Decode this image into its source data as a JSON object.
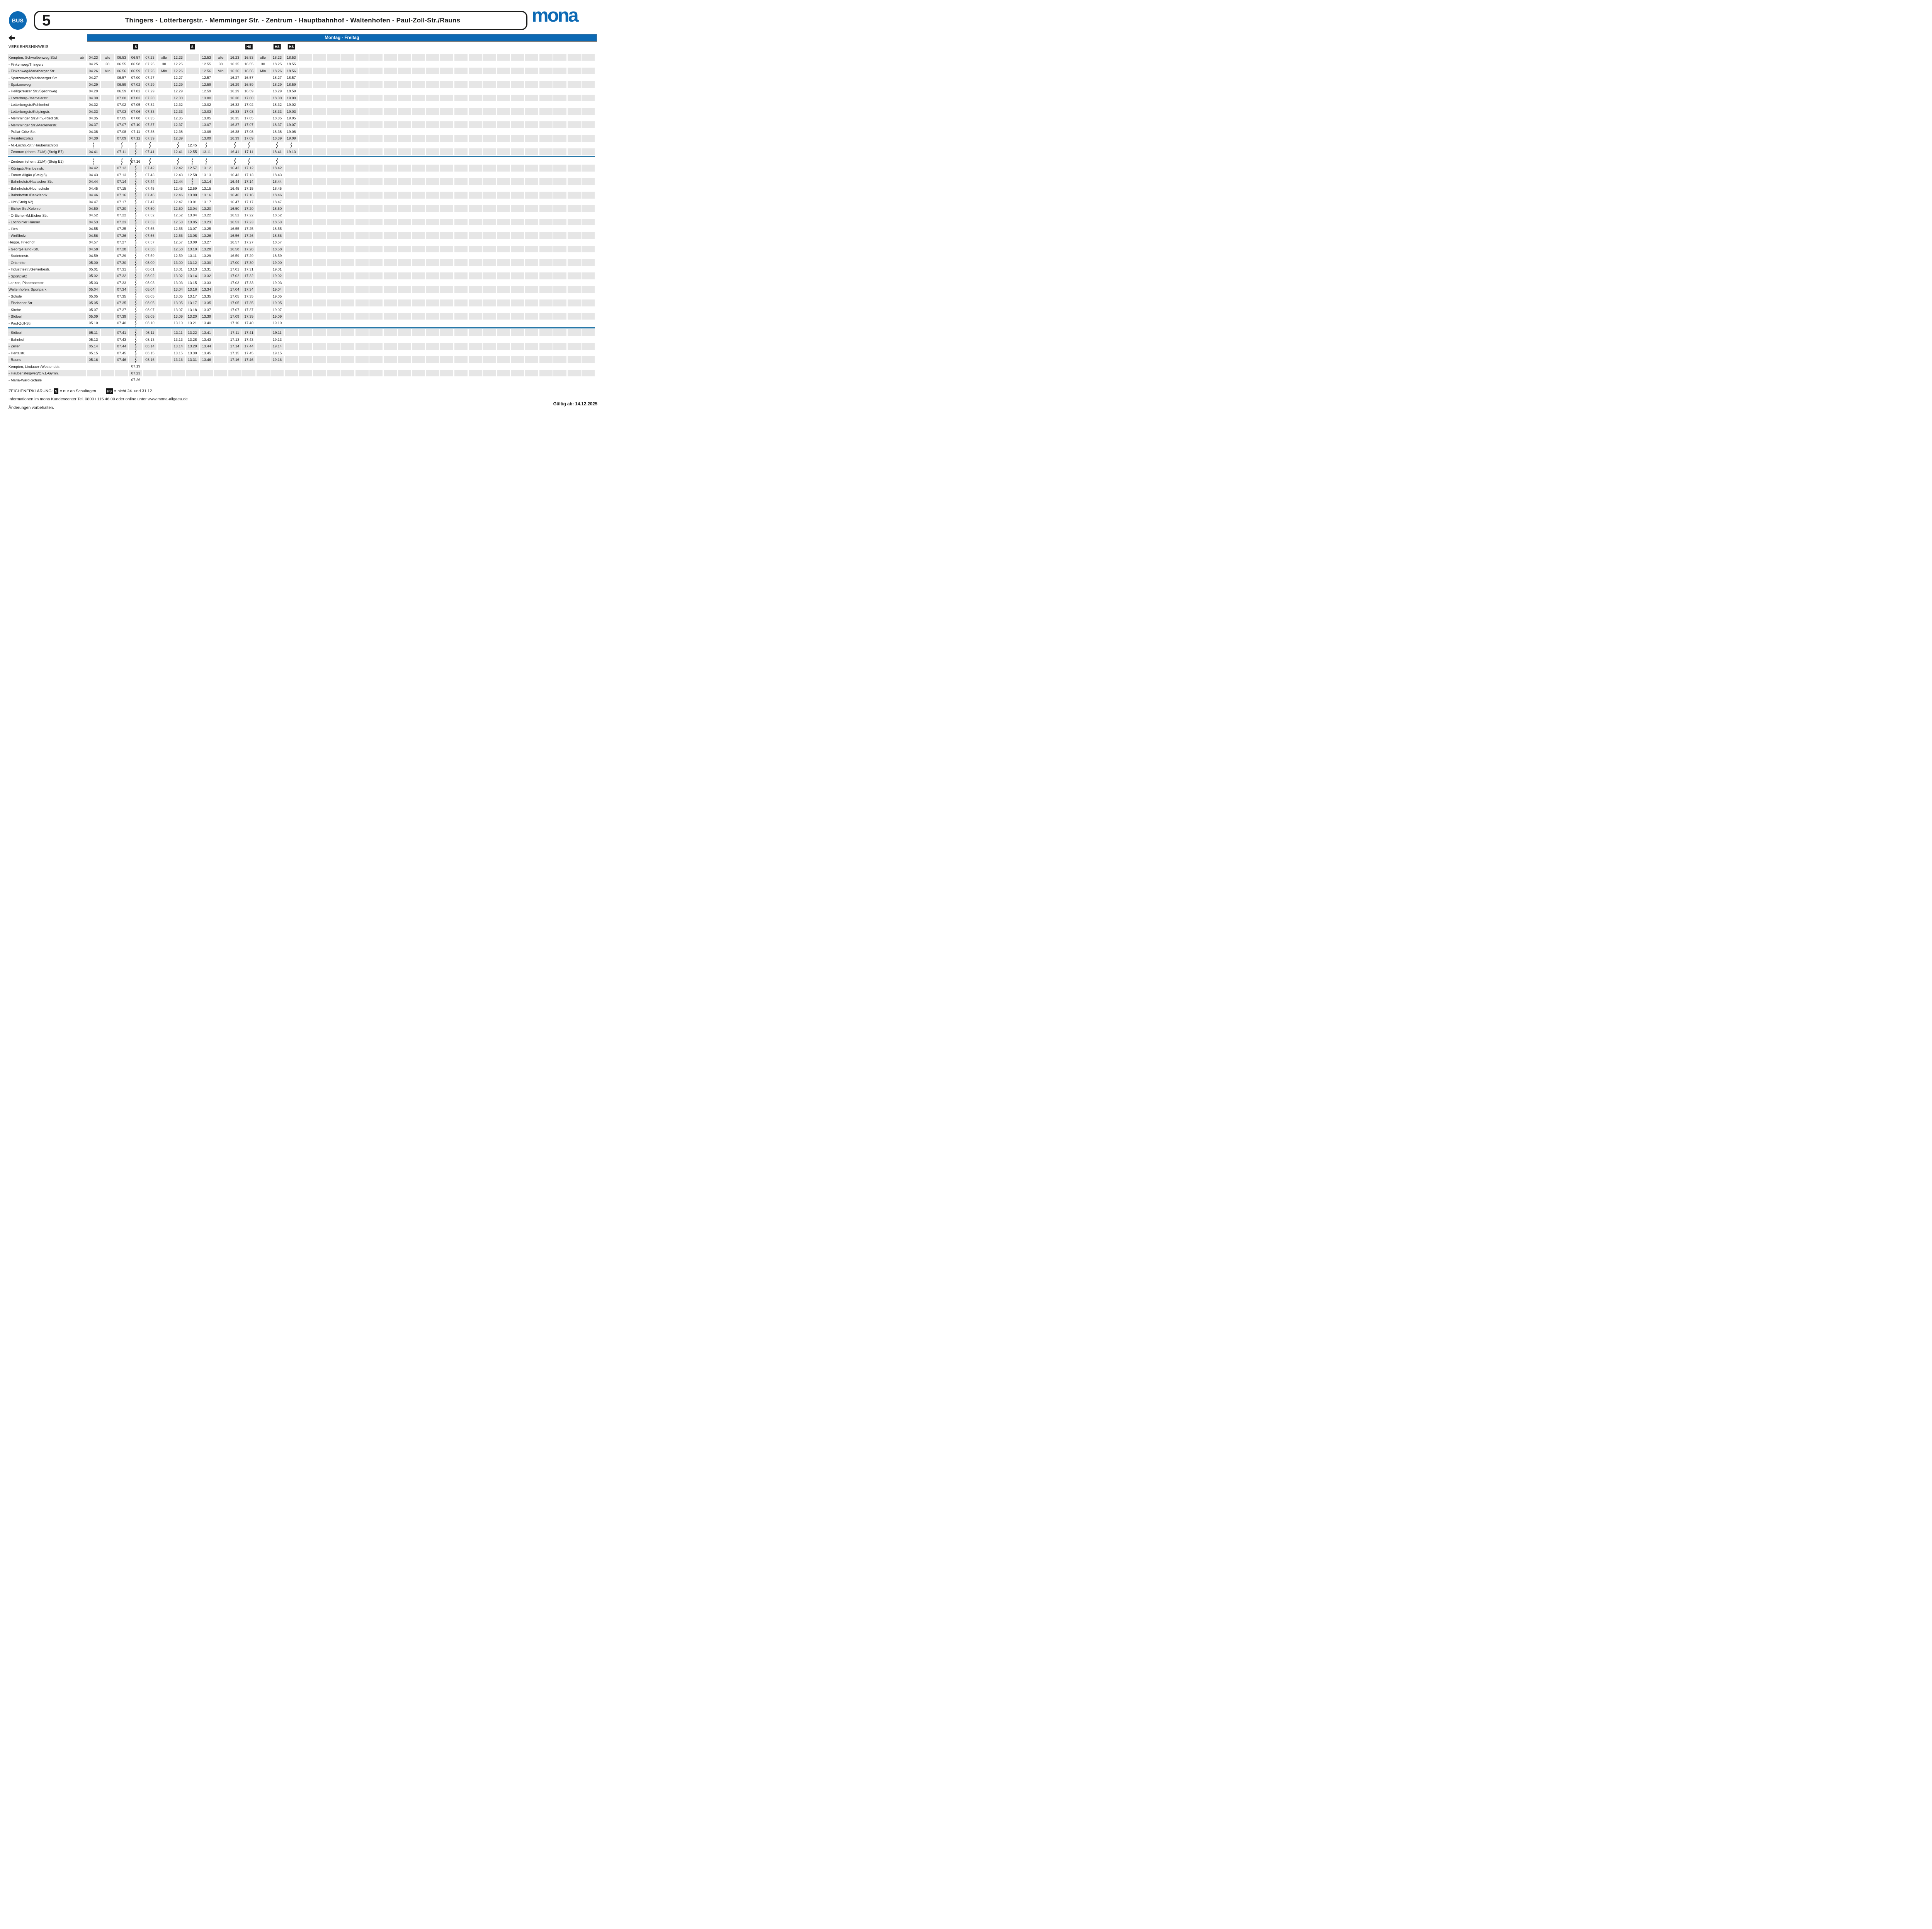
{
  "header": {
    "bus_badge": "BUS",
    "line_number": "5",
    "route_title": "Thingers - Lotterbergstr. - Memminger Str. - Zentrum - Hauptbahnhof - Waltenhofen - Paul-Zoll-Str./Rauns",
    "logo_text": "mona"
  },
  "colors": {
    "brand_blue": "#0c69b4",
    "separator_blue": "#2878a8",
    "row_shade": "#e6e6e6",
    "badge_black": "#141414"
  },
  "day_band": "Montag - Freitag",
  "traffic_hint_label": "VERKEHRSHINWEIS",
  "departure_label": "ab",
  "total_columns": 36,
  "column_markers": [
    {
      "col": 4,
      "label": "S"
    },
    {
      "col": 8,
      "label": "S"
    },
    {
      "col": 12,
      "label": "HS"
    },
    {
      "col": 14,
      "label": "HS"
    },
    {
      "col": 15,
      "label": "HS"
    }
  ],
  "separators_after": [
    14,
    39
  ],
  "rows": [
    {
      "name": "Kempten, Schwalbenweg Süd",
      "dash": false,
      "ab": true,
      "shaded": true,
      "cells": {
        "1": "04.23",
        "2": "alle",
        "3": "06.53",
        "4": "06.57",
        "5": "07.23",
        "6": "alle",
        "7": "12.23",
        "9": "12.53",
        "10": "alle",
        "11": "16.23",
        "12": "16.53",
        "13": "alle",
        "14": "18.23",
        "15": "18.53"
      }
    },
    {
      "name": "Finkenweg/Thingers",
      "dash": true,
      "shaded": false,
      "cells": {
        "1": "04.25",
        "2": "30",
        "3": "06.55",
        "4": "06.58",
        "5": "07.25",
        "6": "30",
        "7": "12.25",
        "9": "12.55",
        "10": "30",
        "11": "16.25",
        "12": "16.55",
        "13": "30",
        "14": "18.25",
        "15": "18.55"
      }
    },
    {
      "name": "Finkenweg/Mariaberger Str.",
      "dash": true,
      "shaded": true,
      "cells": {
        "1": "04.26",
        "2": "Min",
        "3": "06.56",
        "4": "06.59",
        "5": "07.26",
        "6": "Min",
        "7": "12.26",
        "9": "12.56",
        "10": "Min",
        "11": "16.26",
        "12": "16.56",
        "13": "Min",
        "14": "18.26",
        "15": "18.56"
      }
    },
    {
      "name": "Spatzenweg/Mariaberger Str.",
      "dash": true,
      "shaded": false,
      "cells": {
        "1": "04.27",
        "3": "06.57",
        "4": "07.00",
        "5": "07.27",
        "7": "12.27",
        "9": "12.57",
        "11": "16.27",
        "12": "16.57",
        "14": "18.27",
        "15": "18.57"
      }
    },
    {
      "name": "Spatzenweg",
      "dash": true,
      "shaded": true,
      "cells": {
        "1": "04.29",
        "3": "06.59",
        "4": "07.02",
        "5": "07.29",
        "7": "12.29",
        "9": "12.59",
        "11": "16.29",
        "12": "16.59",
        "14": "18.29",
        "15": "18.59"
      }
    },
    {
      "name": "Heiligkreuzer Str./Spechtweg",
      "dash": true,
      "shaded": false,
      "cells": {
        "1": "04.29",
        "3": "06.59",
        "4": "07.02",
        "5": "07.29",
        "7": "12.29",
        "9": "12.59",
        "11": "16.29",
        "12": "16.59",
        "14": "18.29",
        "15": "18.59"
      }
    },
    {
      "name": "Lotterberg-/Memelerstr.",
      "dash": true,
      "shaded": true,
      "cells": {
        "1": "04.30",
        "3": "07.00",
        "4": "07.03",
        "5": "07.30",
        "7": "12.30",
        "9": "13.00",
        "11": "16.30",
        "12": "17.00",
        "14": "18.30",
        "15": "19.00"
      }
    },
    {
      "name": "Lotterbergstr./Fohlenhof",
      "dash": true,
      "shaded": false,
      "cells": {
        "1": "04.32",
        "3": "07.02",
        "4": "07.05",
        "5": "07.32",
        "7": "12.32",
        "9": "13.02",
        "11": "16.32",
        "12": "17.02",
        "14": "18.32",
        "15": "19.02"
      }
    },
    {
      "name": "Lotterbergstr./Kolpingstr.",
      "dash": true,
      "shaded": true,
      "cells": {
        "1": "04.33",
        "3": "07.03",
        "4": "07.06",
        "5": "07.33",
        "7": "12.33",
        "9": "13.03",
        "11": "16.33",
        "12": "17.03",
        "14": "18.33",
        "15": "19.03"
      }
    },
    {
      "name": "Memminger Str./Fr.v.-Ried Str.",
      "dash": true,
      "shaded": false,
      "cells": {
        "1": "04.35",
        "3": "07.05",
        "4": "07.08",
        "5": "07.35",
        "7": "12.35",
        "9": "13.05",
        "11": "16.35",
        "12": "17.05",
        "14": "18.35",
        "15": "19.05"
      }
    },
    {
      "name": "Memminger Str./Madlenerstr.",
      "dash": true,
      "shaded": true,
      "cells": {
        "1": "04.37",
        "3": "07.07",
        "4": "07.10",
        "5": "07.37",
        "7": "12.37",
        "9": "13.07",
        "11": "16.37",
        "12": "17.07",
        "14": "18.37",
        "15": "19.07"
      }
    },
    {
      "name": "Prälat-Götz-Str.",
      "dash": true,
      "shaded": false,
      "cells": {
        "1": "04.38",
        "3": "07.08",
        "4": "07.11",
        "5": "07.38",
        "7": "12.38",
        "9": "13.08",
        "11": "16.38",
        "12": "17.08",
        "14": "18.38",
        "15": "19.08"
      }
    },
    {
      "name": "Residenzplatz",
      "dash": true,
      "shaded": true,
      "cells": {
        "1": "04.39",
        "3": "07.09",
        "4": "07.12",
        "5": "07.39",
        "7": "12.39",
        "9": "13.09",
        "11": "16.39",
        "12": "17.09",
        "14": "18.39",
        "15": "19.09"
      }
    },
    {
      "name": "M.-Lochb.-Str./Haubenschloß",
      "dash": true,
      "shaded": false,
      "cells": {
        "8": "12.45"
      },
      "wavy": [
        1,
        3,
        4,
        5,
        7,
        9,
        11,
        12,
        14,
        15
      ]
    },
    {
      "name": "Zentrum (ehem. ZUM) (Steig B7)",
      "dash": true,
      "shaded": true,
      "cells": {
        "1": "04.41",
        "3": "07.11",
        "5": "07.41",
        "7": "12.41",
        "8": "12.55",
        "9": "13.11",
        "11": "16.41",
        "12": "17.11",
        "14": "18.41",
        "15": "19.13"
      },
      "wavy": [
        4
      ]
    },
    {
      "name": "Zentrum (ehem. ZUM) (Steig E2)",
      "dash": true,
      "shaded": false,
      "cells": {
        "4": "07.16"
      },
      "wavy": [
        1,
        3,
        5,
        7,
        8,
        9,
        11,
        12,
        14
      ],
      "wavy_left": [
        4
      ]
    },
    {
      "name": "Königstr./Hirnbeinstr.",
      "dash": true,
      "shaded": true,
      "cells": {
        "1": "04.42",
        "3": "07.12",
        "5": "07.42",
        "7": "12.42",
        "8": "12.57",
        "9": "13.12",
        "11": "16.42",
        "12": "17.12",
        "14": "18.42"
      },
      "wavy": [
        4
      ]
    },
    {
      "name": "Forum Allgäu (Steig 8)",
      "dash": true,
      "shaded": false,
      "cells": {
        "1": "04.43",
        "3": "07.13",
        "5": "07.43",
        "7": "12.43",
        "8": "12.58",
        "9": "13.13",
        "11": "16.43",
        "12": "17.13",
        "14": "18.43"
      },
      "wavy": [
        4
      ]
    },
    {
      "name": "Bahnhofstr./Haslacher Str.",
      "dash": true,
      "shaded": true,
      "cells": {
        "1": "04.44",
        "3": "07.14",
        "5": "07.44",
        "7": "12.44",
        "9": "13.14",
        "11": "16.44",
        "12": "17.14",
        "14": "18.44"
      },
      "wavy": [
        4,
        8
      ]
    },
    {
      "name": "Bahnhofstr./Hochschule",
      "dash": true,
      "shaded": false,
      "cells": {
        "1": "04.45",
        "3": "07.15",
        "5": "07.45",
        "7": "12.45",
        "8": "12.59",
        "9": "13.15",
        "11": "16.45",
        "12": "17.15",
        "14": "18.45"
      },
      "wavy": [
        4
      ]
    },
    {
      "name": "Bahnhofstr./Denkfabrik",
      "dash": true,
      "shaded": true,
      "cells": {
        "1": "04.46",
        "3": "07.16",
        "5": "07.46",
        "7": "12.46",
        "8": "13.00",
        "9": "13.16",
        "11": "16.46",
        "12": "17.16",
        "14": "18.46"
      },
      "wavy": [
        4
      ]
    },
    {
      "name": "Hbf (Steig A2)",
      "dash": true,
      "shaded": false,
      "cells": {
        "1": "04.47",
        "3": "07.17",
        "5": "07.47",
        "7": "12.47",
        "8": "13.01",
        "9": "13.17",
        "11": "16.47",
        "12": "17.17",
        "14": "18.47"
      },
      "wavy": [
        4
      ]
    },
    {
      "name": "Eicher Str./Kolonie",
      "dash": true,
      "shaded": true,
      "cells": {
        "1": "04.50",
        "3": "07.20",
        "5": "07.50",
        "7": "12.50",
        "8": "13.04",
        "9": "13.20",
        "11": "16.50",
        "12": "17.20",
        "14": "18.50"
      },
      "wavy": [
        4
      ]
    },
    {
      "name": "O.Eicher-/M.Eicher Str.",
      "dash": true,
      "shaded": false,
      "cells": {
        "1": "04.52",
        "3": "07.22",
        "5": "07.52",
        "7": "12.52",
        "8": "13.04",
        "9": "13.22",
        "11": "16.52",
        "12": "17.22",
        "14": "18.52"
      },
      "wavy": [
        4
      ]
    },
    {
      "name": "Lochbihler Häuser",
      "dash": true,
      "shaded": true,
      "cells": {
        "1": "04.53",
        "3": "07.23",
        "5": "07.53",
        "7": "12.53",
        "8": "13.05",
        "9": "13.23",
        "11": "16.53",
        "12": "17.23",
        "14": "18.53"
      },
      "wavy": [
        4
      ]
    },
    {
      "name": "Eich",
      "dash": true,
      "shaded": false,
      "cells": {
        "1": "04.55",
        "3": "07.25",
        "5": "07.55",
        "7": "12.55",
        "8": "13.07",
        "9": "13.25",
        "11": "16.55",
        "12": "17.25",
        "14": "18.55"
      },
      "wavy": [
        4
      ]
    },
    {
      "name": "Weißholz",
      "dash": true,
      "shaded": true,
      "cells": {
        "1": "04.56",
        "3": "07.26",
        "5": "07.56",
        "7": "12.56",
        "8": "13.08",
        "9": "13.26",
        "11": "16.56",
        "12": "17.26",
        "14": "18.56"
      },
      "wavy": [
        4
      ]
    },
    {
      "name": "Hegge, Friedhof",
      "dash": false,
      "shaded": false,
      "cells": {
        "1": "04.57",
        "3": "07.27",
        "5": "07.57",
        "7": "12.57",
        "8": "13.09",
        "9": "13.27",
        "11": "16.57",
        "12": "17.27",
        "14": "18.57"
      },
      "wavy": [
        4
      ]
    },
    {
      "name": "Georg-Haindl-Str.",
      "dash": true,
      "shaded": true,
      "cells": {
        "1": "04.58",
        "3": "07.28",
        "5": "07.58",
        "7": "12.58",
        "8": "13.10",
        "9": "13.28",
        "11": "16.58",
        "12": "17.28",
        "14": "18.58"
      },
      "wavy": [
        4
      ]
    },
    {
      "name": "Sudetenstr.",
      "dash": true,
      "shaded": false,
      "cells": {
        "1": "04.59",
        "3": "07.29",
        "5": "07.59",
        "7": "12.59",
        "8": "13.11",
        "9": "13.29",
        "11": "16.59",
        "12": "17.29",
        "14": "18.59"
      },
      "wavy": [
        4
      ]
    },
    {
      "name": "Ortsmitte",
      "dash": true,
      "shaded": true,
      "cells": {
        "1": "05.00",
        "3": "07.30",
        "5": "08.00",
        "7": "13.00",
        "8": "13.12",
        "9": "13.30",
        "11": "17.00",
        "12": "17.30",
        "14": "19.00"
      },
      "wavy": [
        4
      ]
    },
    {
      "name": "Industriestr./Gewerbestr.",
      "dash": true,
      "shaded": false,
      "cells": {
        "1": "05.01",
        "3": "07.31",
        "5": "08.01",
        "7": "13.01",
        "8": "13.13",
        "9": "13.31",
        "11": "17.01",
        "12": "17.31",
        "14": "19.01"
      },
      "wavy": [
        4
      ]
    },
    {
      "name": "Sportplatz",
      "dash": true,
      "shaded": true,
      "cells": {
        "1": "05.02",
        "3": "07.32",
        "5": "08.02",
        "7": "13.02",
        "8": "13.14",
        "9": "13.32",
        "11": "17.02",
        "12": "17.32",
        "14": "19.02"
      },
      "wavy": [
        4
      ]
    },
    {
      "name": "Lanzen, Plabennecstr.",
      "dash": false,
      "shaded": false,
      "cells": {
        "1": "05.03",
        "3": "07.33",
        "5": "08.03",
        "7": "13.03",
        "8": "13.15",
        "9": "13.33",
        "11": "17.03",
        "12": "17.33",
        "14": "19.03"
      },
      "wavy": [
        4
      ]
    },
    {
      "name": "Waltenhofen, Sportpark",
      "dash": false,
      "shaded": true,
      "cells": {
        "1": "05.04",
        "3": "07.34",
        "5": "08.04",
        "7": "13.04",
        "8": "13.16",
        "9": "13.34",
        "11": "17.04",
        "12": "17.34",
        "14": "19.04"
      },
      "wavy": [
        4
      ]
    },
    {
      "name": "Schule",
      "dash": true,
      "shaded": false,
      "cells": {
        "1": "05.05",
        "3": "07.35",
        "5": "08.05",
        "7": "13.05",
        "8": "13.17",
        "9": "13.35",
        "11": "17.05",
        "12": "17.35",
        "14": "19.05"
      },
      "wavy": [
        4
      ]
    },
    {
      "name": "Fischener Str.",
      "dash": true,
      "shaded": true,
      "cells": {
        "1": "05.05",
        "3": "07.35",
        "5": "08.05",
        "7": "13.05",
        "8": "13.17",
        "9": "13.35",
        "11": "17.05",
        "12": "17.35",
        "14": "19.05"
      },
      "wavy": [
        4
      ]
    },
    {
      "name": "Kirche",
      "dash": true,
      "shaded": false,
      "cells": {
        "1": "05.07",
        "3": "07.37",
        "5": "08.07",
        "7": "13.07",
        "8": "13.18",
        "9": "13.37",
        "11": "17.07",
        "12": "17.37",
        "14": "19.07"
      },
      "wavy": [
        4
      ]
    },
    {
      "name": "Stöberl",
      "dash": true,
      "shaded": true,
      "cells": {
        "1": "05.09",
        "3": "07.39",
        "5": "08.09",
        "7": "13.09",
        "8": "13.20",
        "9": "13.39",
        "11": "17.09",
        "12": "17.39",
        "14": "19.09"
      },
      "wavy": [
        4
      ]
    },
    {
      "name": "Paul-Zoll-Str.",
      "dash": true,
      "shaded": false,
      "cells": {
        "1": "05.10",
        "3": "07.40",
        "5": "08.10",
        "7": "13.10",
        "8": "13.21",
        "9": "13.40",
        "11": "17.10",
        "12": "17.40",
        "14": "19.10"
      },
      "wavy": [
        4
      ]
    },
    {
      "name": "Stöberl",
      "dash": true,
      "shaded": true,
      "cells": {
        "1": "05.11",
        "3": "07.41",
        "5": "08.11",
        "7": "13.11",
        "8": "13.22",
        "9": "13.41",
        "11": "17.11",
        "12": "17.41",
        "14": "19.11"
      },
      "wavy": [
        4
      ]
    },
    {
      "name": "Bahnhof",
      "dash": true,
      "shaded": false,
      "cells": {
        "1": "05.13",
        "3": "07.43",
        "5": "08.13",
        "7": "13.13",
        "8": "13.28",
        "9": "13.43",
        "11": "17.13",
        "12": "17.43",
        "14": "19.13"
      },
      "wavy": [
        4
      ]
    },
    {
      "name": "Zeller",
      "dash": true,
      "shaded": true,
      "cells": {
        "1": "05.14",
        "3": "07.44",
        "5": "08.14",
        "7": "13.14",
        "8": "13.29",
        "9": "13.44",
        "11": "17.14",
        "12": "17.44",
        "14": "19.14"
      },
      "wavy": [
        4
      ]
    },
    {
      "name": "Illertalstr.",
      "dash": true,
      "shaded": false,
      "cells": {
        "1": "05.15",
        "3": "07.45",
        "5": "08.15",
        "7": "13.15",
        "8": "13.30",
        "9": "13.45",
        "11": "17.15",
        "12": "17.45",
        "14": "19.15"
      },
      "wavy": [
        4
      ]
    },
    {
      "name": "Rauns",
      "dash": true,
      "shaded": true,
      "cells": {
        "1": "05.16",
        "3": "07.46",
        "5": "08.16",
        "7": "13.16",
        "8": "13.31",
        "9": "13.46",
        "11": "17.16",
        "12": "17.46",
        "14": "19.16"
      },
      "wavy": [
        4
      ]
    },
    {
      "name": "Kempten, Lindauer-/Westendstr.",
      "dash": false,
      "shaded": false,
      "cells": {
        "4": "07.19"
      }
    },
    {
      "name": "Haubensteigweg/C.v.L-Gymn.",
      "dash": true,
      "shaded": true,
      "cells": {
        "4": "07.23"
      }
    },
    {
      "name": "Maria-Ward-Schule",
      "dash": true,
      "shaded": false,
      "cells": {
        "4": "07.26"
      }
    }
  ],
  "legend": {
    "title": "ZEICHENERKLÄRUNG:",
    "items": [
      {
        "symbol": "S",
        "text": "= nur an Schultagen"
      },
      {
        "symbol": "HS",
        "text": "= nicht 24. und 31.12."
      }
    ]
  },
  "footer": {
    "info": "Informationen im mona Kundencenter Tel. 0800 / 115 46 00 oder online unter www.mona-allgaeu.de",
    "changes": "Änderungen vorbehalten.",
    "valid_from": "Gültig ab: 14.12.2025"
  }
}
